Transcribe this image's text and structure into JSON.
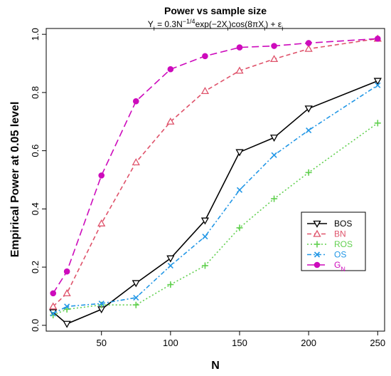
{
  "chart_data": {
    "type": "line",
    "title": "Power vs sample size",
    "subtitle": {
      "y": "Y",
      "i1": "i",
      "eq": " = 0.3N",
      "exp": "−1/4",
      "mid": "exp(−2X",
      "i2": "i",
      "mid2": ")cos(8πX",
      "i3": "i",
      "tail": ") + ε",
      "i4": "i"
    },
    "xlabel": "N",
    "ylabel": "Empirical Power at 0.05 level",
    "xlim": [
      10,
      255
    ],
    "ylim": [
      -0.02,
      1.02
    ],
    "xticks": [
      "50",
      "100",
      "150",
      "200",
      "250"
    ],
    "yticks": [
      "0.0",
      "0.2",
      "0.4",
      "0.6",
      "0.8",
      "1.0"
    ],
    "x": [
      15,
      25,
      50,
      75,
      100,
      125,
      150,
      175,
      200,
      250
    ],
    "legend_position": "right",
    "series": [
      {
        "name": "BOS",
        "color": "#000000",
        "marker": "triangle-down",
        "dash": "",
        "values": [
          0.045,
          0.005,
          0.055,
          0.145,
          0.23,
          0.36,
          0.595,
          0.645,
          0.745,
          0.84
        ]
      },
      {
        "name": "BN",
        "color": "#df536b",
        "marker": "triangle-up",
        "dash": "6,4",
        "values": [
          0.065,
          0.11,
          0.35,
          0.56,
          0.7,
          0.805,
          0.875,
          0.915,
          0.95,
          0.985
        ]
      },
      {
        "name": "ROS",
        "color": "#61d04f",
        "marker": "plus",
        "dash": "2,3",
        "values": [
          0.035,
          0.055,
          0.07,
          0.07,
          0.14,
          0.205,
          0.335,
          0.435,
          0.525,
          0.695
        ]
      },
      {
        "name": "OS",
        "color": "#2297e6",
        "marker": "x",
        "dash": "6,3,2,3",
        "values": [
          0.04,
          0.065,
          0.075,
          0.095,
          0.205,
          0.305,
          0.465,
          0.585,
          0.67,
          0.825
        ]
      },
      {
        "name": "G",
        "subscript": "N",
        "color": "#cd0bbc",
        "marker": "dot",
        "dash": "10,5",
        "values": [
          0.11,
          0.185,
          0.515,
          0.77,
          0.88,
          0.925,
          0.955,
          0.96,
          0.97,
          0.985
        ]
      }
    ]
  }
}
